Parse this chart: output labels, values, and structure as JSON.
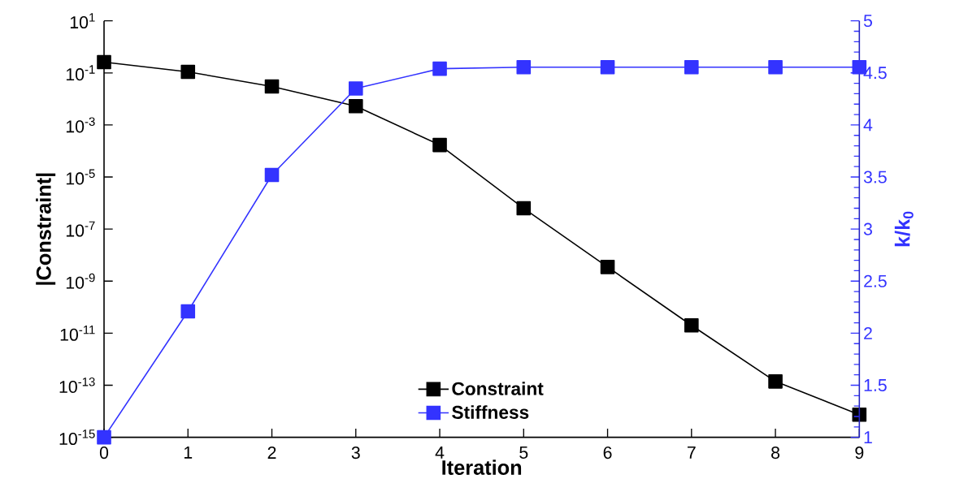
{
  "chart_data": {
    "type": "line",
    "xlabel": "Iteration",
    "ylabel": "|Constraint|",
    "y2label": "k/k$_{0}$",
    "x": [
      0,
      1,
      2,
      3,
      4,
      5,
      6,
      7,
      8,
      9
    ],
    "series": [
      {
        "name": "Constraint",
        "color": "#000000",
        "values": [
          0.26,
          0.11,
          0.03,
          0.0053,
          0.00017,
          6.3e-07,
          3.5e-09,
          2e-11,
          1.4e-13,
          7.4e-15
        ]
      },
      {
        "name": "Stiffness",
        "color": "#3333ff",
        "axis": "y2",
        "values": [
          1.0,
          2.21,
          3.52,
          4.35,
          4.54,
          4.555,
          4.555,
          4.555,
          4.555,
          4.555
        ]
      }
    ],
    "xlim": [
      0,
      9
    ],
    "xticks": [
      0,
      1,
      2,
      3,
      4,
      5,
      6,
      7,
      8,
      9
    ],
    "ylim": [
      1e-15,
      10
    ],
    "yticks": [
      {
        "value": 1e-15,
        "label": "10$^{-15}$"
      },
      {
        "value": 1e-13,
        "label": "10$^{-13}$"
      },
      {
        "value": 1e-11,
        "label": "10$^{-11}$"
      },
      {
        "value": 1e-09,
        "label": "10$^{-9}$"
      },
      {
        "value": 1e-07,
        "label": "10$^{-7}$"
      },
      {
        "value": 1e-05,
        "label": "10$^{-5}$"
      },
      {
        "value": 0.001,
        "label": "10$^{-3}$"
      },
      {
        "value": 0.1,
        "label": "10$^{-1}$"
      },
      {
        "value": 10,
        "label": "10$^{1}$"
      }
    ],
    "y2lim": [
      1,
      5
    ],
    "y2ticks": [
      1,
      1.5,
      2,
      2.5,
      3,
      3.5,
      4,
      4.5,
      5
    ],
    "log": "y",
    "grid": false,
    "legend": "bottom",
    "marker": "square",
    "line_style": "solid"
  }
}
